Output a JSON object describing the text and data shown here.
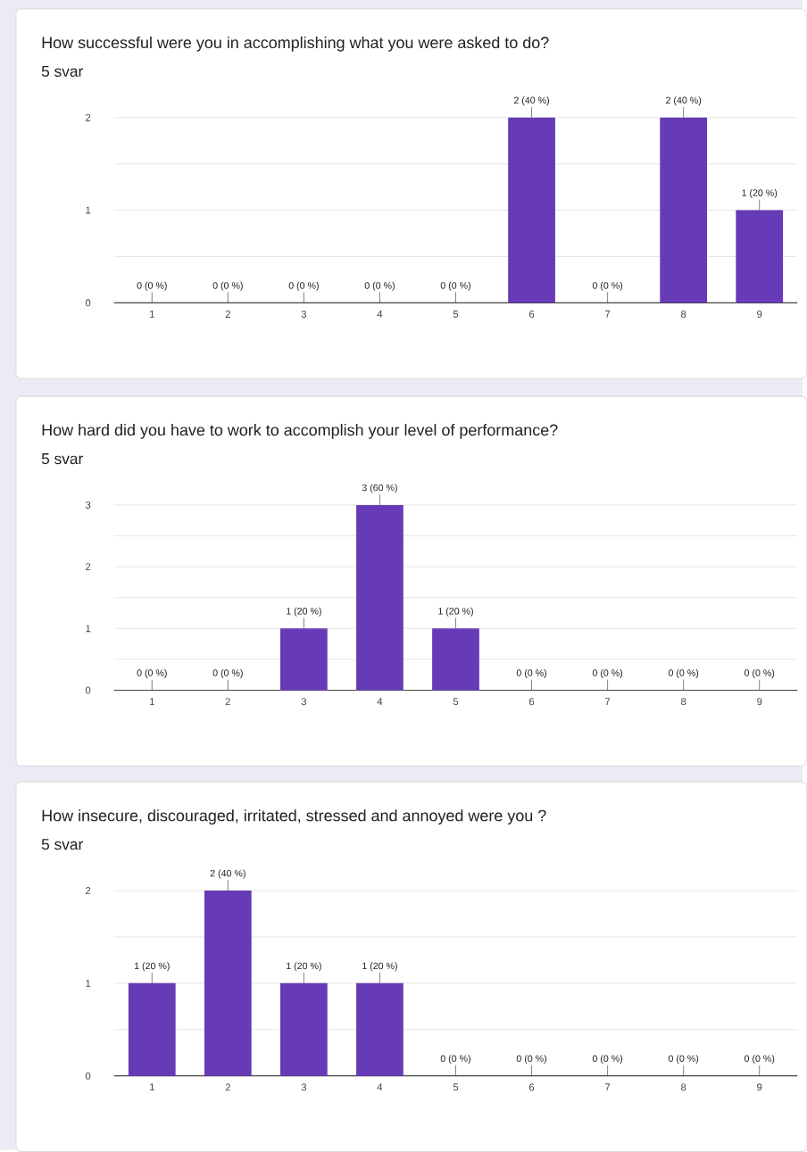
{
  "chart_data": [
    {
      "type": "bar",
      "title": "How successful were you in accomplishing what you were asked to do?",
      "subtitle": "5 svar",
      "categories": [
        "1",
        "2",
        "3",
        "4",
        "5",
        "6",
        "7",
        "8",
        "9"
      ],
      "values": [
        0,
        0,
        0,
        0,
        0,
        2,
        0,
        2,
        1
      ],
      "value_labels": [
        "0 (0 %)",
        "0 (0 %)",
        "0 (0 %)",
        "0 (0 %)",
        "0 (0 %)",
        "2 (40 %)",
        "0 (0 %)",
        "2 (40 %)",
        "1 (20 %)"
      ],
      "color": "#673ab7",
      "ylim": [
        0,
        2
      ],
      "yticks": [
        0,
        {
          "value": 0.5,
          "label": null
        },
        1,
        {
          "value": 1.5,
          "label": null
        },
        2
      ],
      "grid": "y"
    },
    {
      "type": "bar",
      "title": "How hard did you have to work to accomplish your level of performance?",
      "subtitle": "5 svar",
      "categories": [
        "1",
        "2",
        "3",
        "4",
        "5",
        "6",
        "7",
        "8",
        "9"
      ],
      "values": [
        0,
        0,
        1,
        3,
        1,
        0,
        0,
        0,
        0
      ],
      "value_labels": [
        "0 (0 %)",
        "0 (0 %)",
        "1 (20 %)",
        "3 (60 %)",
        "1 (20 %)",
        "0 (0 %)",
        "0 (0 %)",
        "0 (0 %)",
        "0 (0 %)"
      ],
      "color": "#673ab7",
      "ylim": [
        0,
        3
      ],
      "yticks": [
        0,
        {
          "value": 0.5,
          "label": null
        },
        1,
        {
          "value": 1.5,
          "label": null
        },
        2,
        {
          "value": 2.5,
          "label": null
        },
        3
      ],
      "grid": "y"
    },
    {
      "type": "bar",
      "title": "How insecure, discouraged, irritated, stressed and annoyed were you ?",
      "subtitle": "5 svar",
      "categories": [
        "1",
        "2",
        "3",
        "4",
        "5",
        "6",
        "7",
        "8",
        "9"
      ],
      "values": [
        1,
        2,
        1,
        1,
        0,
        0,
        0,
        0,
        0
      ],
      "value_labels": [
        "1 (20 %)",
        "2 (40 %)",
        "1 (20 %)",
        "1 (20 %)",
        "0 (0 %)",
        "0 (0 %)",
        "0 (0 %)",
        "0 (0 %)",
        "0 (0 %)"
      ],
      "color": "#673ab7",
      "ylim": [
        0,
        2
      ],
      "yticks": [
        0,
        {
          "value": 0.5,
          "label": null
        },
        1,
        {
          "value": 1.5,
          "label": null
        },
        2
      ],
      "grid": "y"
    }
  ]
}
